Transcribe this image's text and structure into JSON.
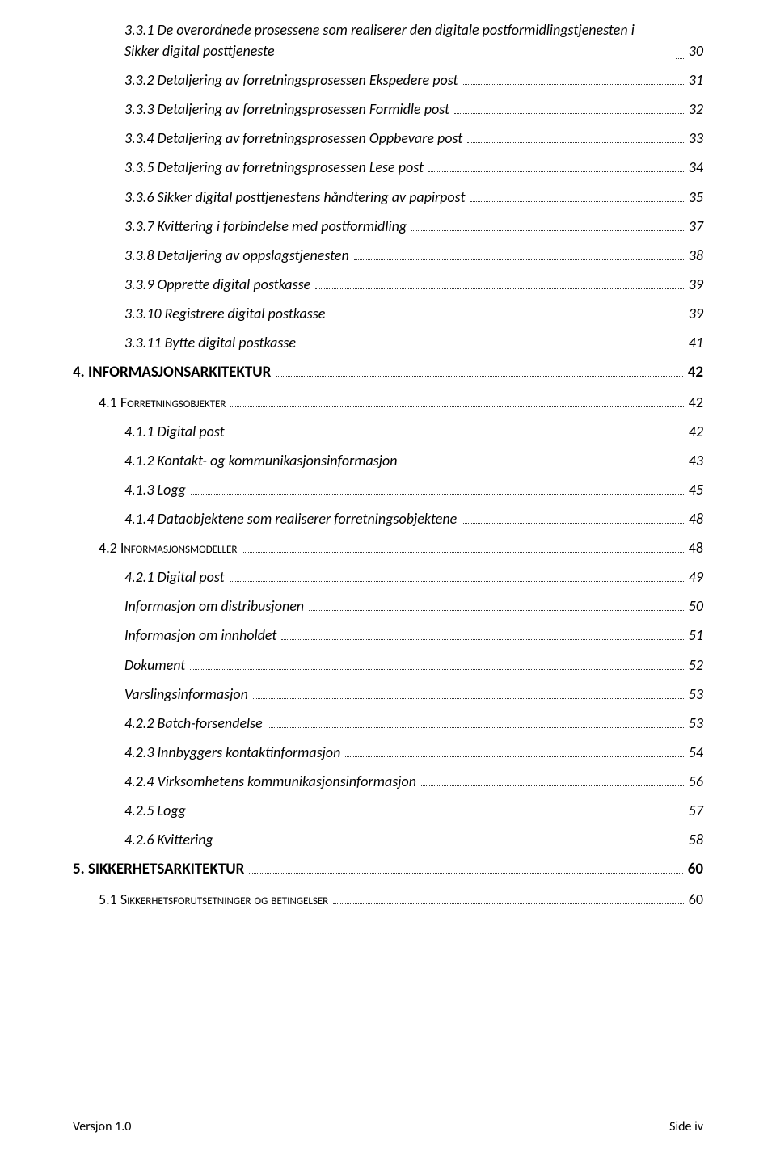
{
  "toc": [
    {
      "label": "3.3.1 De overordnede prosessene som realiserer den digitale postformidlingstjenesten i Sikker digital posttjeneste",
      "page": "30",
      "level": 2,
      "wrap": true
    },
    {
      "label": "3.3.2 Detaljering av forretningsprosessen Ekspedere post",
      "page": "31",
      "level": 2
    },
    {
      "label": "3.3.3 Detaljering av forretningsprosessen Formidle post",
      "page": "32",
      "level": 2
    },
    {
      "label": "3.3.4 Detaljering av forretningsprosessen Oppbevare post",
      "page": "33",
      "level": 2
    },
    {
      "label": "3.3.5 Detaljering av forretningsprosessen Lese post",
      "page": "34",
      "level": 2
    },
    {
      "label": "3.3.6 Sikker digital posttjenestens håndtering av papirpost",
      "page": "35",
      "level": 2
    },
    {
      "label": "3.3.7 Kvittering i forbindelse med postformidling",
      "page": "37",
      "level": 2
    },
    {
      "label": "3.3.8 Detaljering av oppslagstjenesten",
      "page": "38",
      "level": 2
    },
    {
      "label": "3.3.9 Opprette digital postkasse",
      "page": "39",
      "level": 2
    },
    {
      "label": "3.3.10 Registrere digital postkasse",
      "page": "39",
      "level": 2
    },
    {
      "label": "3.3.11 Bytte digital postkasse",
      "page": "41",
      "level": 2
    },
    {
      "label": "4. INFORMASJONSARKITEKTUR",
      "page": "42",
      "level": 0
    },
    {
      "label": "4.1 Forretningsobjekter",
      "page": "42",
      "level": 1
    },
    {
      "label": "4.1.1 Digital post",
      "page": "42",
      "level": 2
    },
    {
      "label": "4.1.2 Kontakt- og kommunikasjonsinformasjon",
      "page": "43",
      "level": 2
    },
    {
      "label": "4.1.3 Logg",
      "page": "45",
      "level": 2
    },
    {
      "label": "4.1.4 Dataobjektene som realiserer forretningsobjektene",
      "page": "48",
      "level": 2
    },
    {
      "label": "4.2 Informasjonsmodeller",
      "page": "48",
      "level": 1
    },
    {
      "label": "4.2.1 Digital post",
      "page": "49",
      "level": 2
    },
    {
      "label": "Informasjon om distribusjonen",
      "page": "50",
      "level": 2
    },
    {
      "label": "Informasjon om innholdet",
      "page": "51",
      "level": 2
    },
    {
      "label": "Dokument",
      "page": "52",
      "level": 2
    },
    {
      "label": "Varslingsinformasjon",
      "page": "53",
      "level": 2
    },
    {
      "label": "4.2.2 Batch-forsendelse",
      "page": "53",
      "level": 2
    },
    {
      "label": "4.2.3 Innbyggers kontaktinformasjon",
      "page": "54",
      "level": 2
    },
    {
      "label": "4.2.4 Virksomhetens kommunikasjonsinformasjon",
      "page": "56",
      "level": 2
    },
    {
      "label": "4.2.5 Logg",
      "page": "57",
      "level": 2
    },
    {
      "label": "4.2.6 Kvittering",
      "page": "58",
      "level": 2
    },
    {
      "label": "5. SIKKERHETSARKITEKTUR",
      "page": "60",
      "level": 0
    },
    {
      "label": "5.1 Sikkerhetsforutsetninger og betingelser",
      "page": "60",
      "level": 1
    }
  ],
  "footer": {
    "version": "Versjon 1.0",
    "pagelabel": "Side iv"
  }
}
